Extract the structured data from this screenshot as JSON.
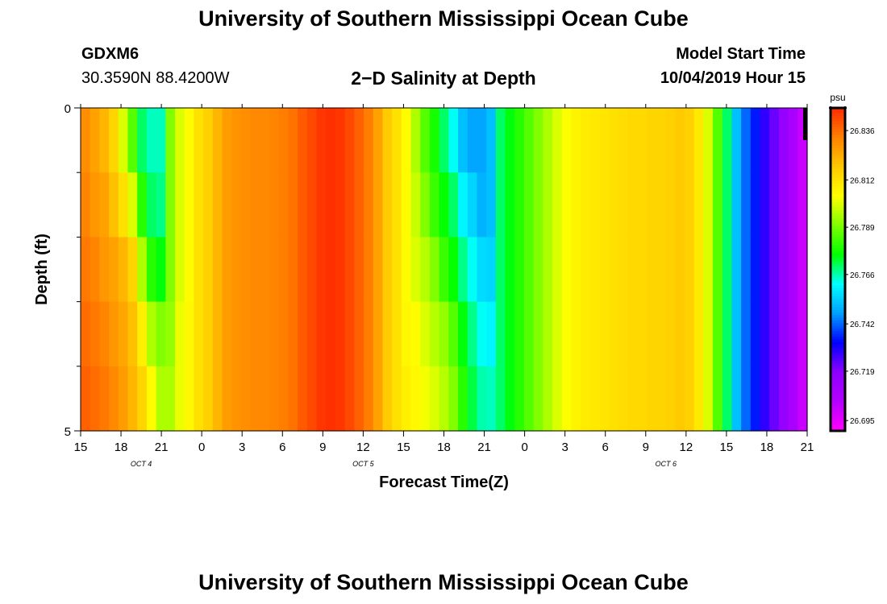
{
  "header": {
    "title": "University of Southern Mississippi Ocean Cube",
    "station": "GDXM6",
    "coords": "30.3590N 88.4200W",
    "subtitle": "2−D Salinity at Depth",
    "model_start_label": "Model Start Time",
    "model_start_value": "10/04/2019 Hour 15"
  },
  "footer": {
    "title": "University of Southern Mississippi Ocean Cube"
  },
  "chart_data": {
    "type": "heatmap",
    "title": "2−D Salinity at Depth",
    "xlabel": "Forecast Time(Z)",
    "ylabel": "Depth (ft)",
    "x_tick_labels": [
      "15",
      "18",
      "21",
      "0",
      "3",
      "6",
      "9",
      "12",
      "15",
      "18",
      "21",
      "0",
      "3",
      "6",
      "9",
      "12",
      "15",
      "18",
      "21"
    ],
    "date_labels": [
      "OCT 4",
      "OCT 5",
      "OCT 6"
    ],
    "y_tick_labels": [
      "0",
      "5"
    ],
    "ylim": [
      0,
      5
    ],
    "colorbar": {
      "unit": "psu",
      "tick_labels": [
        "26.836",
        "26.812",
        "26.789",
        "26.766",
        "26.742",
        "26.719",
        "26.695"
      ],
      "range": [
        26.69,
        26.847
      ],
      "colors": [
        "#ff00ff",
        "#b400ff",
        "#8c00ff",
        "#0000ff",
        "#00a0ff",
        "#00ffff",
        "#00ff00",
        "#80ff00",
        "#ffff00",
        "#ffc800",
        "#ff8000",
        "#ff2a00"
      ]
    },
    "depth_rows": [
      "layer-1",
      "layer-2",
      "layer-3",
      "layer-4",
      "layer-5"
    ],
    "columns": [
      [
        26.83,
        26.832,
        26.834,
        26.836,
        26.838
      ],
      [
        26.826,
        26.828,
        26.832,
        26.834,
        26.836
      ],
      [
        26.822,
        26.826,
        26.828,
        26.832,
        26.834
      ],
      [
        26.815,
        26.82,
        26.826,
        26.828,
        26.831
      ],
      [
        26.8,
        26.812,
        26.822,
        26.825,
        26.827
      ],
      [
        26.785,
        26.8,
        26.815,
        26.82,
        26.822
      ],
      [
        26.77,
        26.78,
        26.795,
        26.808,
        26.815
      ],
      [
        26.765,
        26.77,
        26.78,
        26.795,
        26.805
      ],
      [
        26.765,
        26.768,
        26.775,
        26.79,
        26.795
      ],
      [
        26.79,
        26.79,
        26.79,
        26.792,
        26.795
      ],
      [
        26.8,
        26.8,
        26.8,
        26.802,
        26.802
      ],
      [
        26.805,
        26.805,
        26.805,
        26.806,
        26.806
      ],
      [
        26.812,
        26.812,
        26.812,
        26.812,
        26.812
      ],
      [
        26.816,
        26.816,
        26.816,
        26.816,
        26.816
      ],
      [
        26.822,
        26.822,
        26.822,
        26.822,
        26.822
      ],
      [
        26.827,
        26.827,
        26.827,
        26.827,
        26.827
      ],
      [
        26.829,
        26.829,
        26.829,
        26.829,
        26.829
      ],
      [
        26.83,
        26.83,
        26.83,
        26.83,
        26.83
      ],
      [
        26.831,
        26.831,
        26.831,
        26.831,
        26.831
      ],
      [
        26.831,
        26.831,
        26.831,
        26.831,
        26.831
      ],
      [
        26.832,
        26.832,
        26.832,
        26.832,
        26.832
      ],
      [
        26.833,
        26.833,
        26.833,
        26.833,
        26.833
      ],
      [
        26.835,
        26.835,
        26.835,
        26.835,
        26.835
      ],
      [
        26.839,
        26.839,
        26.839,
        26.839,
        26.839
      ],
      [
        26.842,
        26.842,
        26.842,
        26.842,
        26.842
      ],
      [
        26.845,
        26.845,
        26.845,
        26.845,
        26.845
      ],
      [
        26.846,
        26.846,
        26.846,
        26.846,
        26.846
      ],
      [
        26.845,
        26.845,
        26.845,
        26.845,
        26.845
      ],
      [
        26.842,
        26.842,
        26.842,
        26.842,
        26.842
      ],
      [
        26.838,
        26.838,
        26.838,
        26.838,
        26.838
      ],
      [
        26.833,
        26.833,
        26.833,
        26.833,
        26.833
      ],
      [
        26.826,
        26.826,
        26.826,
        26.826,
        26.826
      ],
      [
        26.818,
        26.818,
        26.818,
        26.818,
        26.818
      ],
      [
        26.812,
        26.812,
        26.812,
        26.812,
        26.812
      ],
      [
        26.805,
        26.805,
        26.805,
        26.806,
        26.808
      ],
      [
        26.795,
        26.798,
        26.8,
        26.805,
        26.806
      ],
      [
        26.785,
        26.79,
        26.796,
        26.8,
        26.803
      ],
      [
        26.778,
        26.782,
        26.79,
        26.796,
        26.8
      ],
      [
        26.77,
        26.776,
        26.782,
        26.792,
        26.796
      ],
      [
        26.762,
        26.77,
        26.776,
        26.785,
        26.79
      ],
      [
        26.752,
        26.76,
        26.768,
        26.775,
        26.78
      ],
      [
        26.748,
        26.755,
        26.762,
        26.768,
        26.772
      ],
      [
        26.748,
        26.75,
        26.756,
        26.762,
        26.766
      ],
      [
        26.752,
        26.752,
        26.755,
        26.76,
        26.765
      ],
      [
        26.77,
        26.77,
        26.77,
        26.77,
        26.77
      ],
      [
        26.775,
        26.775,
        26.775,
        26.775,
        26.775
      ],
      [
        26.78,
        26.78,
        26.78,
        26.78,
        26.78
      ],
      [
        26.785,
        26.785,
        26.785,
        26.785,
        26.785
      ],
      [
        26.79,
        26.79,
        26.79,
        26.79,
        26.79
      ],
      [
        26.795,
        26.795,
        26.795,
        26.795,
        26.795
      ],
      [
        26.8,
        26.8,
        26.8,
        26.8,
        26.8
      ],
      [
        26.804,
        26.804,
        26.804,
        26.804,
        26.804
      ],
      [
        26.807,
        26.807,
        26.807,
        26.807,
        26.807
      ],
      [
        26.809,
        26.809,
        26.809,
        26.809,
        26.809
      ],
      [
        26.81,
        26.81,
        26.81,
        26.81,
        26.81
      ],
      [
        26.811,
        26.811,
        26.811,
        26.811,
        26.811
      ],
      [
        26.812,
        26.812,
        26.812,
        26.812,
        26.812
      ],
      [
        26.813,
        26.813,
        26.813,
        26.813,
        26.813
      ],
      [
        26.814,
        26.814,
        26.814,
        26.814,
        26.814
      ],
      [
        26.814,
        26.814,
        26.814,
        26.814,
        26.814
      ],
      [
        26.815,
        26.815,
        26.815,
        26.815,
        26.815
      ],
      [
        26.815,
        26.815,
        26.815,
        26.815,
        26.815
      ],
      [
        26.816,
        26.816,
        26.816,
        26.816,
        26.816
      ],
      [
        26.818,
        26.818,
        26.818,
        26.818,
        26.818
      ],
      [
        26.816,
        26.816,
        26.816,
        26.816,
        26.816
      ],
      [
        26.81,
        26.81,
        26.81,
        26.81,
        26.81
      ],
      [
        26.8,
        26.8,
        26.8,
        26.8,
        26.8
      ],
      [
        26.785,
        26.785,
        26.785,
        26.785,
        26.785
      ],
      [
        26.77,
        26.77,
        26.77,
        26.77,
        26.77
      ],
      [
        26.752,
        26.752,
        26.752,
        26.752,
        26.752
      ],
      [
        26.742,
        26.742,
        26.742,
        26.742,
        26.742
      ],
      [
        26.735,
        26.735,
        26.735,
        26.735,
        26.735
      ],
      [
        26.728,
        26.728,
        26.728,
        26.728,
        26.728
      ],
      [
        26.722,
        26.722,
        26.722,
        26.722,
        26.722
      ],
      [
        26.715,
        26.715,
        26.715,
        26.715,
        26.715
      ],
      [
        26.708,
        26.708,
        26.708,
        26.708,
        26.708
      ],
      [
        26.7,
        26.7,
        26.7,
        26.7,
        26.7
      ]
    ]
  }
}
